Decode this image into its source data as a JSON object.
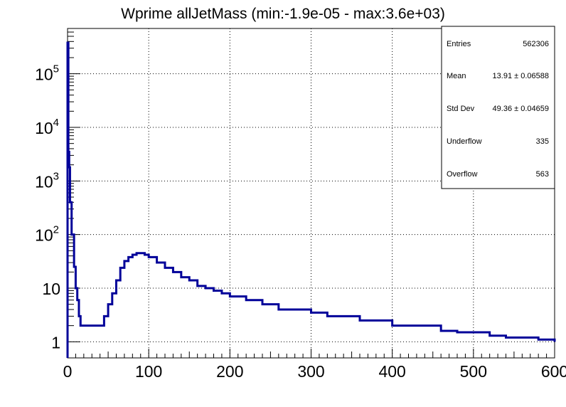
{
  "chart_data": {
    "type": "bar",
    "title": "Wprime allJetMass (min:-1.9e-05 - max:3.6e+03)",
    "xlim": [
      0,
      600
    ],
    "ylim": [
      0.5,
      700000
    ],
    "log_y": true,
    "grid": true,
    "line_color": "#000099",
    "x_ticks": [
      "0",
      "100",
      "200",
      "300",
      "400",
      "500",
      "600"
    ],
    "y_ticks": [
      {
        "value": 1,
        "label": "1"
      },
      {
        "value": 10,
        "label": "10"
      },
      {
        "value": 100,
        "base": "10",
        "exp": "2"
      },
      {
        "value": 1000,
        "base": "10",
        "exp": "3"
      },
      {
        "value": 10000,
        "base": "10",
        "exp": "4"
      },
      {
        "value": 100000,
        "base": "10",
        "exp": "5"
      }
    ],
    "series": [
      {
        "x": [
          0,
          1,
          2,
          3,
          5,
          8,
          10,
          12,
          14,
          16,
          18,
          20,
          25,
          30,
          35,
          40,
          45,
          50,
          55,
          60,
          65,
          70,
          75,
          80,
          85,
          90,
          95,
          100,
          110,
          120,
          130,
          140,
          150,
          160,
          170,
          180,
          190,
          200,
          220,
          240,
          260,
          280,
          300,
          320,
          340,
          360,
          380,
          400,
          420,
          440,
          460,
          480,
          500,
          520,
          540,
          560,
          580,
          600
        ],
        "values": [
          380000,
          3500,
          1800,
          400,
          100,
          25,
          10,
          6,
          3,
          2,
          2,
          2,
          2,
          2,
          2,
          2,
          3,
          5,
          8,
          14,
          24,
          32,
          38,
          42,
          45,
          45,
          42,
          38,
          30,
          24,
          20,
          16,
          14,
          11,
          10,
          9,
          8,
          7,
          6,
          5,
          4,
          4,
          3.5,
          3,
          3,
          2.5,
          2.5,
          2,
          2,
          2,
          1.6,
          1.5,
          1.5,
          1.3,
          1.2,
          1.2,
          1.1,
          1.0
        ]
      }
    ]
  },
  "stats": {
    "entries_label": "Entries",
    "entries_value": "562306",
    "mean_label": "Mean",
    "mean_value": "13.91 ± 0.06588",
    "stddev_label": "Std Dev",
    "stddev_value": "49.36 ± 0.04659",
    "underflow_label": "Underflow",
    "underflow_value": "335",
    "overflow_label": "Overflow",
    "overflow_value": "563"
  }
}
